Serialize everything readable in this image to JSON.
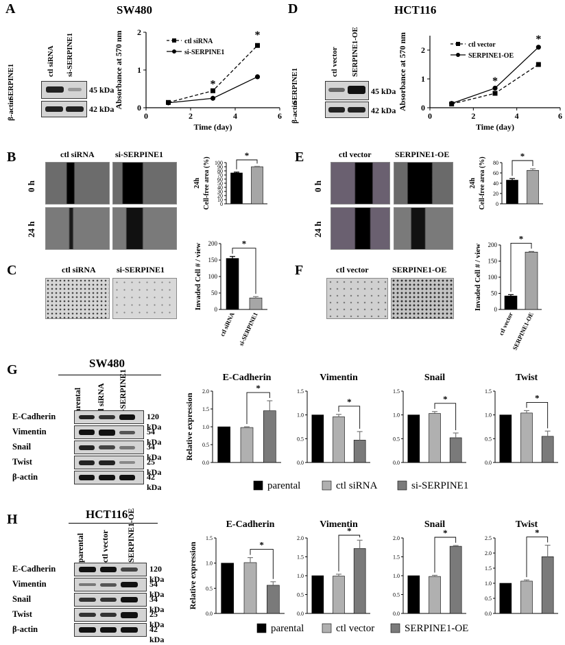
{
  "panels": {
    "A": "A",
    "B": "B",
    "C": "C",
    "D": "D",
    "E": "E",
    "F": "F",
    "G": "G",
    "H": "H"
  },
  "titles": {
    "sw480": "SW480",
    "hct116": "HCT116",
    "g_blot": "SW480",
    "h_blot": "HCT116"
  },
  "blots": {
    "A": {
      "lanes": [
        "ctl siRNA",
        "si-SERPINE1"
      ],
      "rows": [
        {
          "protein": "SERPINE1",
          "kda": "45 kDa"
        },
        {
          "protein": "β-actin",
          "kda": "42 kDa"
        }
      ]
    },
    "D": {
      "lanes": [
        "ctl vector",
        "SERPINE1-OE"
      ],
      "rows": [
        {
          "protein": "SERPINE1",
          "kda": "45 kDa"
        },
        {
          "protein": "β-actin",
          "kda": "42 kDa"
        }
      ]
    },
    "G": {
      "lanes": [
        "parental",
        "ctl siRNA",
        "si-SERPINE1"
      ],
      "rows": [
        {
          "protein": "E-Cadherin",
          "kda": "120 kDa"
        },
        {
          "protein": "Vimentin",
          "kda": "54 kDa"
        },
        {
          "protein": "Snail",
          "kda": "34 kDa"
        },
        {
          "protein": "Twist",
          "kda": "25 kDa"
        },
        {
          "protein": "β-actin",
          "kda": "42 kDa"
        }
      ]
    },
    "H": {
      "lanes": [
        "parental",
        "ctl vector",
        "SERPINE1-OE"
      ],
      "rows": [
        {
          "protein": "E-Cadherin",
          "kda": "120 kDa"
        },
        {
          "protein": "Vimentin",
          "kda": "54 kDa"
        },
        {
          "protein": "Snail",
          "kda": "34 kDa"
        },
        {
          "protein": "Twist",
          "kda": "25 kDa"
        },
        {
          "protein": "β-actin",
          "kda": "42 kDa"
        }
      ]
    }
  },
  "images": {
    "B": {
      "cols": [
        "ctl siRNA",
        "si-SERPINE1"
      ],
      "rows": [
        "0 h",
        "24 h"
      ]
    },
    "C": {
      "cols": [
        "ctl siRNA",
        "si-SERPINE1"
      ]
    },
    "E": {
      "cols": [
        "ctl vector",
        "SERPINE1-OE"
      ],
      "rows": [
        "0 h",
        "24 h"
      ]
    },
    "F": {
      "cols": [
        "ctl vector",
        "SERPINE1-OE"
      ]
    }
  },
  "legends": {
    "G": [
      "parental",
      "ctl siRNA",
      "si-SERPINE1"
    ],
    "H": [
      "parental",
      "ctl vector",
      "SERPINE1-OE"
    ]
  },
  "chart_data": [
    {
      "id": "A-line",
      "type": "line",
      "xlabel": "Time (day)",
      "ylabel": "Absorbance at 570 nm",
      "xlim": [
        0,
        6
      ],
      "ylim": [
        0,
        2
      ],
      "xticks": [
        0,
        2,
        4,
        6
      ],
      "yticks": [
        0,
        1,
        2
      ],
      "series": [
        {
          "name": "ctl siRNA",
          "dashed": true,
          "marker": "square",
          "x": [
            1,
            3,
            5
          ],
          "y": [
            0.14,
            0.45,
            1.65
          ]
        },
        {
          "name": "si-SERPINE1",
          "dashed": false,
          "marker": "circle",
          "x": [
            1,
            3,
            5
          ],
          "y": [
            0.13,
            0.25,
            0.82
          ]
        }
      ],
      "annotations": [
        {
          "x": 3,
          "y": 0.65,
          "text": "*"
        },
        {
          "x": 5,
          "y": 1.95,
          "text": "*"
        }
      ]
    },
    {
      "id": "D-line",
      "type": "line",
      "xlabel": "Time (day)",
      "ylabel": "Absorbance at 570 nm",
      "xlim": [
        0,
        6
      ],
      "ylim": [
        0,
        2.5
      ],
      "xticks": [
        0,
        2,
        4,
        6
      ],
      "yticks": [
        0,
        1,
        2
      ],
      "series": [
        {
          "name": "ctl vector",
          "dashed": true,
          "marker": "square",
          "x": [
            1,
            3,
            5
          ],
          "y": [
            0.13,
            0.5,
            1.5
          ]
        },
        {
          "name": "SERPINE1-OE",
          "dashed": false,
          "marker": "circle",
          "x": [
            1,
            3,
            5
          ],
          "y": [
            0.15,
            0.68,
            2.1
          ]
        }
      ],
      "annotations": [
        {
          "x": 3,
          "y": 0.95,
          "text": "*"
        },
        {
          "x": 5,
          "y": 2.4,
          "text": "*"
        }
      ]
    },
    {
      "id": "B-bar",
      "type": "bar",
      "ylabel": "Cell-free area (%)",
      "ylabel2": "24h",
      "ylim": [
        0,
        100
      ],
      "yticks": [
        0,
        10,
        20,
        30,
        40,
        50,
        60,
        70,
        80,
        90,
        100
      ],
      "categories": [
        "ctl siRNA",
        "si-SERPINE1"
      ],
      "values": [
        75,
        90
      ],
      "errors": [
        2,
        1
      ],
      "colors": [
        "#000000",
        "#a6a6a6"
      ],
      "sig": "*"
    },
    {
      "id": "C-bar",
      "type": "bar",
      "ylabel": "Invaded Cell # / view",
      "ylim": [
        0,
        200
      ],
      "yticks": [
        0,
        50,
        100,
        150,
        200
      ],
      "categories": [
        "ctl siRNA",
        "si-SERPINE1"
      ],
      "values": [
        155,
        35
      ],
      "errors": [
        6,
        4
      ],
      "colors": [
        "#000000",
        "#a6a6a6"
      ],
      "sig": "*",
      "show_xlabels": true
    },
    {
      "id": "E-bar",
      "type": "bar",
      "ylabel": "Cell-free area (%)",
      "ylabel2": "24h",
      "ylim": [
        0,
        80
      ],
      "yticks": [
        0,
        20,
        40,
        60,
        80
      ],
      "categories": [
        "ctl vector",
        "SERPINE1-OE"
      ],
      "values": [
        46,
        65
      ],
      "errors": [
        3,
        3
      ],
      "colors": [
        "#000000",
        "#a6a6a6"
      ],
      "sig": "*"
    },
    {
      "id": "F-bar",
      "type": "bar",
      "ylabel": "Invaded Cell # / view",
      "ylim": [
        0,
        200
      ],
      "yticks": [
        0,
        50,
        100,
        150,
        200
      ],
      "categories": [
        "ctl vector",
        "SERPINE1-OE"
      ],
      "values": [
        42,
        178
      ],
      "errors": [
        4,
        2
      ],
      "colors": [
        "#000000",
        "#a6a6a6"
      ],
      "sig": "*",
      "show_xlabels": true
    },
    {
      "id": "G1",
      "type": "bar",
      "title": "E-Cadherin",
      "ylabel": "Relative expression",
      "ylim": [
        0,
        2.0
      ],
      "yticks": [
        0.0,
        0.5,
        1.0,
        1.5,
        2.0
      ],
      "categories": [
        "parental",
        "ctl siRNA",
        "si-SERPINE1"
      ],
      "values": [
        1.0,
        0.98,
        1.45
      ],
      "errors": [
        0,
        0.02,
        0.28
      ],
      "colors": [
        "#000000",
        "#b0b0b0",
        "#7a7a7a"
      ],
      "sig": "*"
    },
    {
      "id": "G2",
      "type": "bar",
      "title": "Vimentin",
      "ylim": [
        0,
        1.5
      ],
      "yticks": [
        0.0,
        0.5,
        1.0,
        1.5
      ],
      "categories": [
        "parental",
        "ctl siRNA",
        "si-SERPINE1"
      ],
      "values": [
        1.0,
        0.96,
        0.47
      ],
      "errors": [
        0,
        0.05,
        0.18
      ],
      "colors": [
        "#000000",
        "#b0b0b0",
        "#7a7a7a"
      ],
      "sig": "*"
    },
    {
      "id": "G3",
      "type": "bar",
      "title": "Snail",
      "ylim": [
        0,
        1.5
      ],
      "yticks": [
        0.0,
        0.5,
        1.0,
        1.5
      ],
      "categories": [
        "parental",
        "ctl siRNA",
        "si-SERPINE1"
      ],
      "values": [
        1.0,
        1.03,
        0.52
      ],
      "errors": [
        0,
        0.04,
        0.1
      ],
      "colors": [
        "#000000",
        "#b0b0b0",
        "#7a7a7a"
      ],
      "sig": "*"
    },
    {
      "id": "G4",
      "type": "bar",
      "title": "Twist",
      "ylim": [
        0,
        1.5
      ],
      "yticks": [
        0.0,
        0.5,
        1.0,
        1.5
      ],
      "categories": [
        "parental",
        "ctl siRNA",
        "si-SERPINE1"
      ],
      "values": [
        1.0,
        1.04,
        0.55
      ],
      "errors": [
        0,
        0.05,
        0.11
      ],
      "colors": [
        "#000000",
        "#b0b0b0",
        "#7a7a7a"
      ],
      "sig": "*"
    },
    {
      "id": "H1",
      "type": "bar",
      "title": "E-Cadherin",
      "ylabel": "Relative expression",
      "ylim": [
        0,
        1.5
      ],
      "yticks": [
        0.0,
        0.5,
        1.0,
        1.5
      ],
      "categories": [
        "parental",
        "ctl vector",
        "SERPINE1-OE"
      ],
      "values": [
        1.0,
        1.01,
        0.56
      ],
      "errors": [
        0,
        0.1,
        0.07
      ],
      "colors": [
        "#000000",
        "#b0b0b0",
        "#7a7a7a"
      ],
      "sig": "*"
    },
    {
      "id": "H2",
      "type": "bar",
      "title": "Vimentin",
      "ylim": [
        0,
        2.0
      ],
      "yticks": [
        0.0,
        0.5,
        1.0,
        1.5,
        2.0
      ],
      "categories": [
        "parental",
        "ctl vector",
        "SERPINE1-OE"
      ],
      "values": [
        1.0,
        0.99,
        1.72
      ],
      "errors": [
        0,
        0.05,
        0.22
      ],
      "colors": [
        "#000000",
        "#b0b0b0",
        "#7a7a7a"
      ],
      "sig": "*"
    },
    {
      "id": "H3",
      "type": "bar",
      "title": "Snail",
      "ylim": [
        0,
        2.0
      ],
      "yticks": [
        0.0,
        0.5,
        1.0,
        1.5,
        2.0
      ],
      "categories": [
        "parental",
        "ctl vector",
        "SERPINE1-OE"
      ],
      "values": [
        1.0,
        0.98,
        1.78
      ],
      "errors": [
        0,
        0.03,
        0.02
      ],
      "colors": [
        "#000000",
        "#b0b0b0",
        "#7a7a7a"
      ],
      "sig": "*"
    },
    {
      "id": "H4",
      "type": "bar",
      "title": "Twist",
      "ylim": [
        0,
        2.5
      ],
      "yticks": [
        0.0,
        0.5,
        1.0,
        1.5,
        2.0,
        2.5
      ],
      "categories": [
        "parental",
        "ctl vector",
        "SERPINE1-OE"
      ],
      "values": [
        1.0,
        1.07,
        1.88
      ],
      "errors": [
        0,
        0.04,
        0.38
      ],
      "colors": [
        "#000000",
        "#b0b0b0",
        "#7a7a7a"
      ],
      "sig": "*"
    }
  ]
}
